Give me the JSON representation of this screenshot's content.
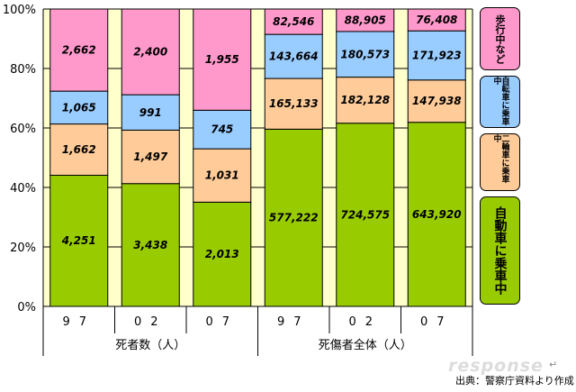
{
  "chart_data": {
    "type": "bar",
    "stacked": "percent",
    "categories": [
      "97",
      "02",
      "07",
      "97",
      "02",
      "07"
    ],
    "groups": [
      {
        "label": "死者数（人）",
        "span": [
          0,
          2
        ]
      },
      {
        "label": "死傷者全体（人）",
        "span": [
          3,
          5
        ]
      }
    ],
    "series": [
      {
        "name": "自動車に乗車中",
        "color": "#99cc00",
        "values": [
          4251,
          3438,
          2013,
          577222,
          724575,
          643920
        ],
        "labels": [
          "4,251",
          "3,438",
          "2,013",
          "577,222",
          "724,575",
          "643,920"
        ]
      },
      {
        "name": "二輪車に乗車中",
        "color": "#ffcc99",
        "values": [
          1662,
          1497,
          1031,
          165133,
          182128,
          147938
        ],
        "labels": [
          "1,662",
          "1,497",
          "1,031",
          "165,133",
          "182,128",
          "147,938"
        ]
      },
      {
        "name": "自転車に乗車中",
        "color": "#99ccff",
        "values": [
          1065,
          991,
          745,
          143664,
          180573,
          171923
        ],
        "labels": [
          "1,065",
          "991",
          "745",
          "143,664",
          "180,573",
          "171,923"
        ]
      },
      {
        "name": "歩行中など",
        "color": "#ff99cc",
        "values": [
          2662,
          2400,
          1955,
          82546,
          88905,
          76408
        ],
        "labels": [
          "2,662",
          "2,400",
          "1,955",
          "82,546",
          "88,905",
          "76,408"
        ]
      }
    ],
    "yticks": [
      "0%",
      "20%",
      "40%",
      "60%",
      "80%",
      "100%"
    ],
    "ylim": [
      0,
      100
    ],
    "plot_background": "#ffffcc",
    "grid": true,
    "legend_position": "right"
  },
  "legend_labels": {
    "pedestrian": "歩行中など",
    "bicycle": "自転車に乗車中",
    "motorcycle": "二輪車に乗車中",
    "car": "自動車に乗車中"
  },
  "source_note": "出典：警察庁資料より作成",
  "watermark": "response",
  "return_mark": "↵"
}
